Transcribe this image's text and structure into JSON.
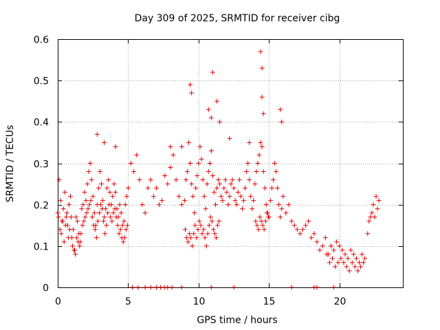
{
  "chart_data": {
    "type": "scatter",
    "title": "Day 309 of 2025, SRMTID for receiver cibg",
    "xlabel": "GPS time / hours",
    "ylabel": "SRMTID / TECUs",
    "xlim": [
      0,
      24.5
    ],
    "ylim": [
      0,
      0.6
    ],
    "xticks": [
      0,
      5,
      10,
      15,
      20
    ],
    "xtick_labels": [
      "0",
      "5",
      "10",
      "15",
      "20"
    ],
    "yticks": [
      0,
      0.1,
      0.2,
      0.3,
      0.4,
      0.5,
      0.6
    ],
    "ytick_labels": [
      "0",
      "0.1",
      "0.2",
      "0.3",
      "0.4",
      "0.5",
      "0.6"
    ],
    "grid": true,
    "marker": "plus",
    "color": "#e00000",
    "series": [
      {
        "name": "SRMTID",
        "x": [
          0.0,
          0.1,
          0.2,
          0.3,
          0.4,
          0.5,
          0.6,
          0.7,
          0.8,
          0.9,
          1.0,
          1.1,
          1.2,
          1.3,
          1.4,
          1.5,
          1.6,
          1.7,
          1.8,
          1.9,
          2.0,
          2.1,
          2.2,
          2.3,
          2.4,
          2.5,
          2.6,
          2.7,
          2.8,
          2.9,
          3.0,
          3.1,
          3.2,
          3.3,
          3.4,
          3.5,
          3.6,
          3.7,
          3.8,
          3.9,
          4.0,
          4.1,
          4.2,
          4.3,
          4.4,
          4.5,
          4.6,
          4.7,
          4.8,
          4.9,
          5.0,
          5.2,
          5.4,
          5.6,
          5.8,
          6.0,
          6.2,
          6.4,
          6.6,
          6.8,
          7.0,
          7.2,
          7.4,
          7.6,
          7.8,
          8.0,
          8.2,
          8.4,
          8.6,
          8.8,
          9.0,
          9.1,
          9.2,
          9.3,
          9.4,
          9.5,
          9.6,
          9.7,
          9.8,
          9.9,
          10.0,
          10.1,
          10.2,
          10.3,
          10.4,
          10.5,
          10.6,
          10.7,
          10.8,
          10.9,
          11.0,
          11.1,
          11.2,
          11.3,
          11.4,
          11.5,
          11.6,
          11.7,
          11.8,
          11.9,
          12.0,
          12.1,
          12.2,
          12.3,
          12.4,
          12.5,
          12.6,
          12.7,
          12.8,
          12.9,
          13.0,
          13.1,
          13.2,
          13.3,
          13.4,
          13.5,
          13.6,
          13.7,
          13.8,
          13.9,
          14.0,
          14.1,
          14.2,
          14.3,
          14.4,
          14.5,
          14.6,
          14.7,
          14.8,
          14.9,
          15.0,
          15.1,
          15.2,
          15.3,
          15.4,
          15.5,
          15.6,
          15.7,
          15.8,
          15.9,
          16.0,
          16.2,
          16.4,
          16.6,
          16.8,
          17.0,
          17.2,
          17.4,
          17.6,
          17.8,
          18.0,
          18.2,
          18.4,
          18.6,
          18.8,
          19.0,
          19.2,
          19.4,
          19.6,
          19.8,
          20.0,
          20.2,
          20.4,
          20.6,
          20.8,
          21.0,
          21.2,
          21.4,
          21.6,
          21.8,
          22.0,
          22.2,
          22.4,
          22.6,
          22.8,
          0.05,
          0.15,
          0.25,
          0.35,
          0.45,
          0.55,
          0.65,
          0.75,
          0.85,
          0.95,
          1.05,
          1.15,
          1.25,
          1.35,
          1.45,
          1.55,
          1.65,
          1.75,
          1.85,
          1.95,
          2.05,
          2.15,
          2.25,
          2.35,
          2.45,
          2.55,
          2.65,
          2.75,
          2.85,
          2.95,
          3.05,
          3.15,
          3.25,
          3.35,
          3.45,
          3.55,
          3.65,
          3.75,
          3.85,
          3.95,
          4.05,
          4.15,
          4.25,
          4.35,
          4.45,
          4.55,
          4.65,
          4.75,
          4.85,
          4.95,
          9.05,
          9.15,
          9.25,
          9.35,
          9.45,
          9.55,
          9.65,
          9.75,
          9.85,
          9.95,
          10.05,
          10.15,
          10.25,
          10.35,
          10.45,
          10.55,
          10.65,
          10.75,
          10.85,
          10.95,
          11.05,
          11.15,
          11.25,
          11.35,
          11.45,
          14.05,
          14.15,
          14.25,
          14.35,
          14.45,
          14.55,
          14.65,
          14.75,
          14.85,
          14.95,
          19.1,
          19.3,
          19.5,
          19.7,
          19.9,
          20.1,
          20.3,
          20.5,
          20.7,
          20.9,
          21.1,
          21.3,
          21.5,
          21.7,
          22.1,
          22.3,
          22.5,
          22.7,
          9.4,
          9.5,
          10.7,
          10.9,
          11.0,
          11.3,
          11.5,
          14.4,
          14.5,
          14.5,
          14.6,
          15.8,
          15.9,
          2.8,
          3.3,
          4.1,
          8.0,
          8.8,
          12.2,
          13.6,
          5.3,
          5.7,
          6.2,
          6.6,
          7.0,
          7.3,
          7.6,
          7.8,
          8.1,
          8.8,
          10.9,
          12.5,
          16.6,
          18.2,
          18.4,
          19.6
        ],
        "y": [
          0.18,
          0.26,
          0.21,
          0.16,
          0.19,
          0.23,
          0.17,
          0.15,
          0.2,
          0.22,
          0.12,
          0.14,
          0.09,
          0.17,
          0.16,
          0.13,
          0.11,
          0.19,
          0.2,
          0.23,
          0.21,
          0.25,
          0.28,
          0.3,
          0.26,
          0.22,
          0.18,
          0.15,
          0.2,
          0.24,
          0.28,
          0.25,
          0.21,
          0.17,
          0.19,
          0.24,
          0.26,
          0.23,
          0.2,
          0.22,
          0.25,
          0.23,
          0.19,
          0.17,
          0.2,
          0.18,
          0.15,
          0.16,
          0.2,
          0.22,
          0.24,
          0.3,
          0.28,
          0.32,
          0.26,
          0.2,
          0.18,
          0.24,
          0.26,
          0.22,
          0.24,
          0.2,
          0.21,
          0.27,
          0.25,
          0.29,
          0.32,
          0.26,
          0.22,
          0.2,
          0.21,
          0.26,
          0.28,
          0.35,
          0.3,
          0.25,
          0.22,
          0.18,
          0.24,
          0.27,
          0.3,
          0.34,
          0.31,
          0.26,
          0.22,
          0.19,
          0.25,
          0.28,
          0.3,
          0.33,
          0.27,
          0.23,
          0.2,
          0.24,
          0.26,
          0.25,
          0.22,
          0.21,
          0.24,
          0.26,
          0.23,
          0.2,
          0.22,
          0.25,
          0.26,
          0.24,
          0.21,
          0.2,
          0.23,
          0.26,
          0.22,
          0.19,
          0.21,
          0.24,
          0.28,
          0.3,
          0.26,
          0.22,
          0.19,
          0.21,
          0.25,
          0.28,
          0.3,
          0.32,
          0.35,
          0.34,
          0.28,
          0.24,
          0.2,
          0.18,
          0.17,
          0.21,
          0.24,
          0.26,
          0.3,
          0.28,
          0.24,
          0.2,
          0.17,
          0.19,
          0.22,
          0.18,
          0.2,
          0.16,
          0.15,
          0.14,
          0.13,
          0.14,
          0.15,
          0.16,
          0.12,
          0.13,
          0.11,
          0.09,
          0.1,
          0.12,
          0.08,
          0.1,
          0.09,
          0.11,
          0.1,
          0.09,
          0.08,
          0.07,
          0.09,
          0.08,
          0.07,
          0.06,
          0.08,
          0.07,
          0.13,
          0.17,
          0.2,
          0.22,
          0.21,
          0.17,
          0.14,
          0.13,
          0.16,
          0.11,
          0.15,
          0.18,
          0.12,
          0.14,
          0.17,
          0.1,
          0.09,
          0.08,
          0.12,
          0.11,
          0.1,
          0.13,
          0.15,
          0.16,
          0.17,
          0.18,
          0.19,
          0.2,
          0.21,
          0.17,
          0.15,
          0.14,
          0.12,
          0.16,
          0.18,
          0.2,
          0.19,
          0.16,
          0.13,
          0.15,
          0.18,
          0.2,
          0.17,
          0.16,
          0.18,
          0.19,
          0.17,
          0.15,
          0.13,
          0.14,
          0.12,
          0.11,
          0.12,
          0.14,
          0.15,
          0.14,
          0.12,
          0.11,
          0.13,
          0.12,
          0.1,
          0.13,
          0.15,
          0.12,
          0.14,
          0.16,
          0.15,
          0.13,
          0.14,
          0.12,
          0.1,
          0.13,
          0.15,
          0.17,
          0.16,
          0.14,
          0.13,
          0.12,
          0.15,
          0.16,
          0.16,
          0.15,
          0.14,
          0.17,
          0.16,
          0.15,
          0.14,
          0.16,
          0.18,
          0.17,
          0.08,
          0.06,
          0.07,
          0.05,
          0.06,
          0.07,
          0.06,
          0.05,
          0.04,
          0.06,
          0.05,
          0.04,
          0.05,
          0.06,
          0.16,
          0.18,
          0.17,
          0.19,
          0.49,
          0.47,
          0.43,
          0.41,
          0.52,
          0.45,
          0.4,
          0.57,
          0.53,
          0.46,
          0.42,
          0.43,
          0.4,
          0.37,
          0.35,
          0.34,
          0.34,
          0.34,
          0.36,
          0.35,
          0,
          0,
          0,
          0,
          0,
          0,
          0,
          0,
          0,
          0,
          0,
          0,
          0,
          0,
          0,
          0
        ]
      }
    ]
  }
}
